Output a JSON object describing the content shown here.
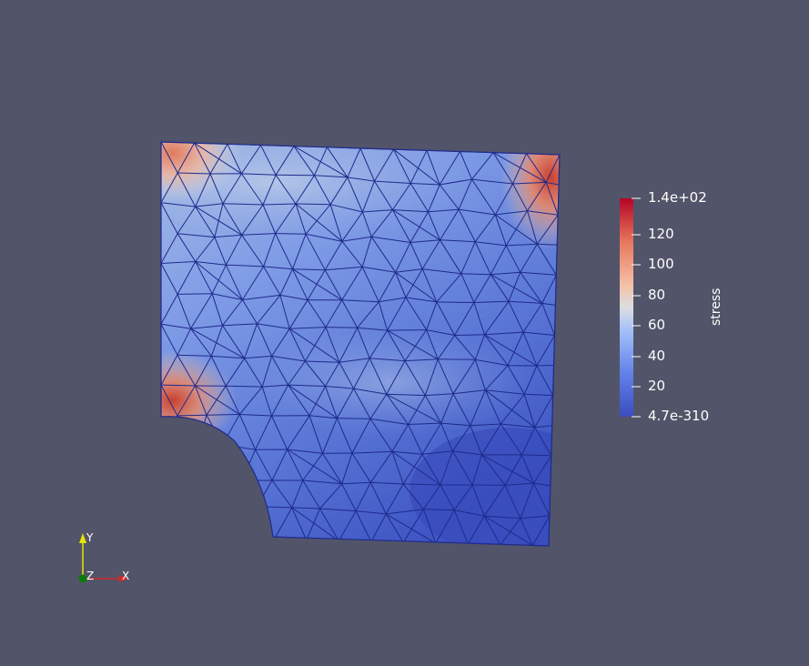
{
  "scene": {
    "background": "#525469",
    "mesh_edge_color": "#1f2a8c",
    "colormap": "Cool to Warm",
    "colormap_colors": [
      "#3b4cc0",
      "#7b9ff9",
      "#c0d4f5",
      "#f2cbb7",
      "#ee8468",
      "#b40426"
    ]
  },
  "colorbar": {
    "title": "stress",
    "labels": [
      "1.4e+02",
      "120",
      "100",
      "80",
      "60",
      "40",
      "20",
      "4.7e-310"
    ]
  },
  "orientation_axes": {
    "x_label": "X",
    "y_label": "Y",
    "z_label": "Z",
    "x_color": "#d62728",
    "y_color": "#e6e600",
    "z_color": "#0a7a0a"
  }
}
